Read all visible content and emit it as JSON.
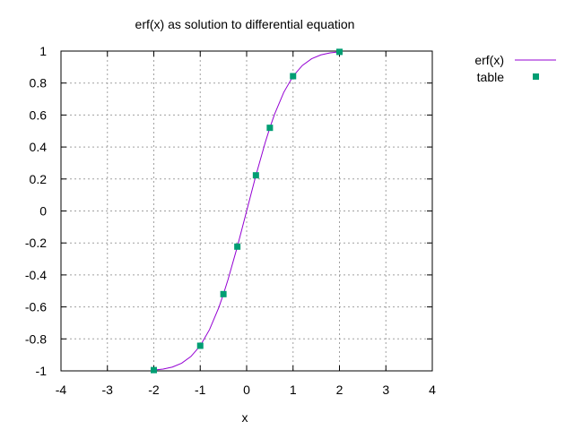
{
  "chart_data": {
    "type": "line",
    "title": "erf(x) as solution to differential equation",
    "xlabel": "x",
    "ylabel": "",
    "xlim": [
      -4,
      4
    ],
    "ylim": [
      -1,
      1
    ],
    "x_ticks": [
      -4,
      -3,
      -2,
      -1,
      0,
      1,
      2,
      3,
      4
    ],
    "y_ticks": [
      -1,
      -0.8,
      -0.6,
      -0.4,
      -0.2,
      0,
      0.2,
      0.4,
      0.6,
      0.8,
      1
    ],
    "grid": true,
    "legend_position": "outside-top-right",
    "series": [
      {
        "name": "erf(x)",
        "style": "line",
        "color": "#9400d3",
        "x": [
          -2.0,
          -1.8,
          -1.6,
          -1.4,
          -1.2,
          -1.0,
          -0.8,
          -0.6,
          -0.5,
          -0.4,
          -0.2,
          0.0,
          0.2,
          0.4,
          0.5,
          0.6,
          0.8,
          1.0,
          1.2,
          1.4,
          1.6,
          1.8,
          2.0
        ],
        "y": [
          -0.995,
          -0.989,
          -0.976,
          -0.952,
          -0.91,
          -0.843,
          -0.742,
          -0.604,
          -0.52,
          -0.428,
          -0.223,
          0.0,
          0.223,
          0.428,
          0.52,
          0.604,
          0.742,
          0.843,
          0.91,
          0.952,
          0.976,
          0.989,
          0.995
        ]
      },
      {
        "name": "table",
        "style": "points",
        "color": "#009e73",
        "x": [
          -2.0,
          -1.0,
          -0.5,
          -0.2,
          0.2,
          0.5,
          1.0,
          2.0
        ],
        "y": [
          -0.995,
          -0.843,
          -0.52,
          -0.223,
          0.223,
          0.52,
          0.843,
          0.995
        ]
      }
    ]
  }
}
